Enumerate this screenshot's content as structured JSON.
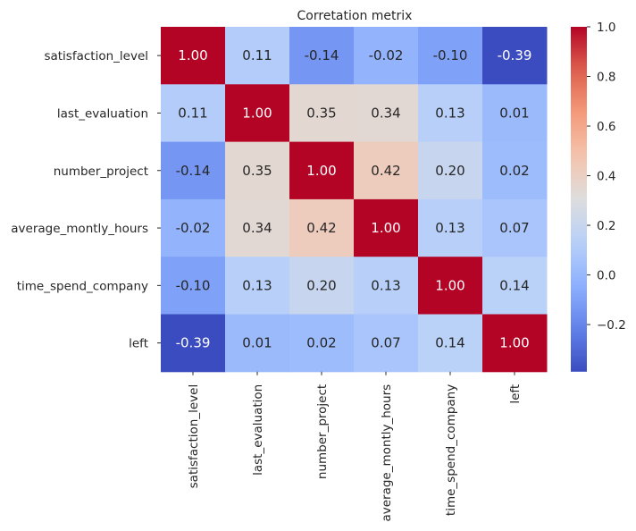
{
  "chart_data": {
    "type": "heatmap",
    "title": "Corretation metrix",
    "xlabel": "",
    "ylabel": "",
    "rows": [
      "satisfaction_level",
      "last_evaluation",
      "number_project",
      "average_montly_hours",
      "time_spend_company",
      "left"
    ],
    "columns": [
      "satisfaction_level",
      "last_evaluation",
      "number_project",
      "average_montly_hours",
      "time_spend_company",
      "left"
    ],
    "values": [
      [
        1.0,
        0.11,
        -0.14,
        -0.02,
        -0.1,
        -0.39
      ],
      [
        0.11,
        1.0,
        0.35,
        0.34,
        0.13,
        0.01
      ],
      [
        -0.14,
        0.35,
        1.0,
        0.42,
        0.2,
        0.02
      ],
      [
        -0.02,
        0.34,
        0.42,
        1.0,
        0.13,
        0.07
      ],
      [
        -0.1,
        0.13,
        0.2,
        0.13,
        1.0,
        0.14
      ],
      [
        -0.39,
        0.01,
        0.02,
        0.07,
        0.14,
        1.0
      ]
    ],
    "annotation_format": "0.00",
    "colormap": "coolwarm",
    "vmin": -0.39,
    "vmax": 1.0,
    "colorbar": {
      "ticks": [
        -0.2,
        0.0,
        0.2,
        0.4,
        0.6,
        0.8,
        1.0
      ],
      "tick_labels": [
        "−0.2",
        "0.0",
        "0.2",
        "0.4",
        "0.6",
        "0.8",
        "1.0"
      ],
      "placement": "right"
    },
    "grid": false
  }
}
